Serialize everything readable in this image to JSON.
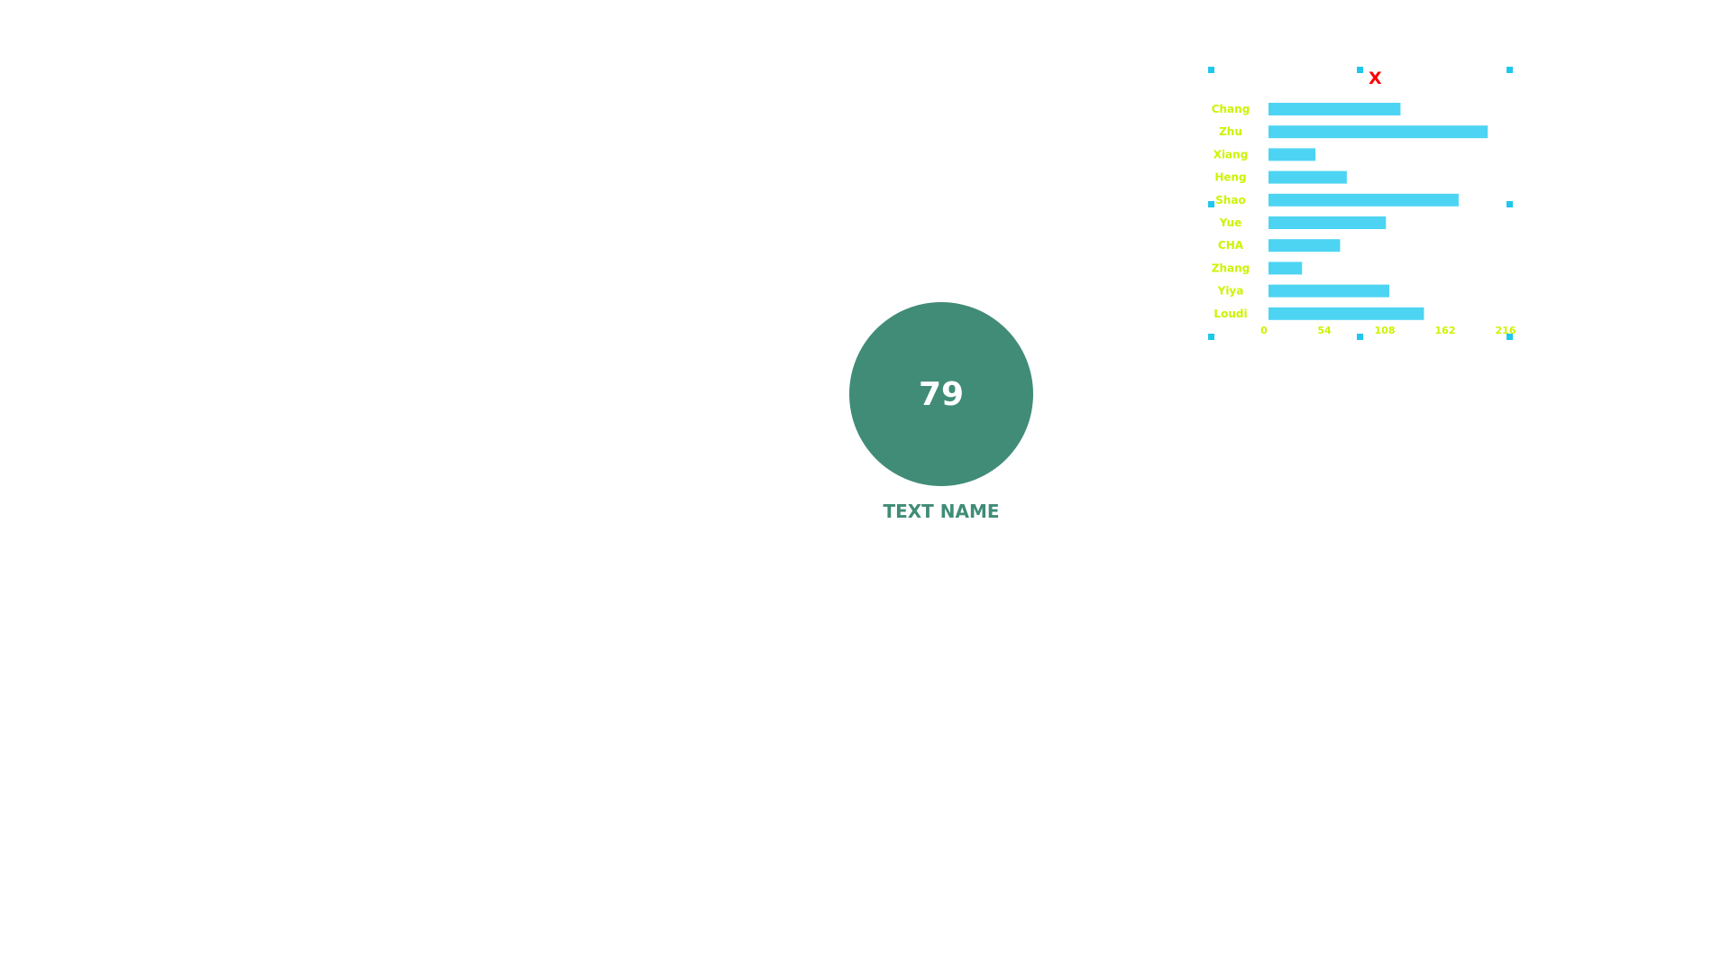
{
  "kpi": {
    "value": "79",
    "label": "TEXT NAME",
    "color": "#408c77"
  },
  "widget": {
    "close_label": "X",
    "close_color": "#ff0000",
    "handle_color": "#1ec8ec"
  },
  "chart_data": {
    "type": "bar",
    "orientation": "horizontal",
    "categories": [
      "Chang",
      "Zhu",
      "Xiang",
      "Heng",
      "Shao",
      "Yue",
      "CHA",
      "Zhang",
      "Yiya",
      "Loudi"
    ],
    "values": [
      118,
      196,
      42,
      70,
      170,
      105,
      64,
      30,
      108,
      139
    ],
    "xticks": [
      0,
      54,
      108,
      162,
      216
    ],
    "xlim": [
      0,
      216
    ],
    "bar_color": "#4dd4f3",
    "label_color": "#ccf400",
    "grid": false,
    "title": ""
  }
}
